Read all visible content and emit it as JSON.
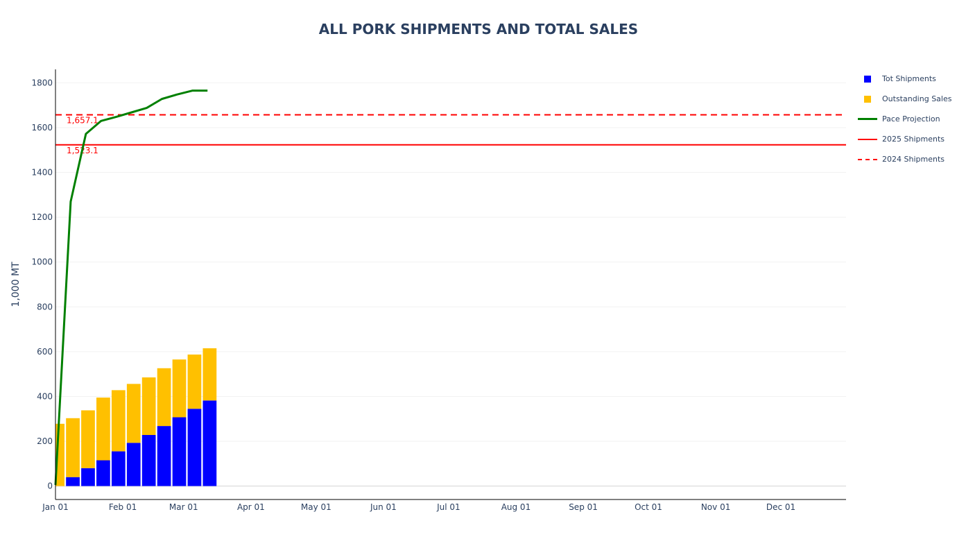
{
  "chart_data": {
    "type": "bar",
    "title": "ALL PORK SHIPMENTS AND TOTAL SALES",
    "ylabel": "1,000 MT",
    "xlabel": "",
    "x_ticks": [
      "Jan 01",
      "Feb 01",
      "Mar 01",
      "Apr 01",
      "May 01",
      "Jun 01",
      "Jul 01",
      "Aug 01",
      "Sep 01",
      "Oct 01",
      "Nov 01",
      "Dec 01"
    ],
    "y_ticks": [
      "0",
      "200",
      "400",
      "600",
      "800",
      "1000",
      "1200",
      "1400",
      "1600",
      "1800"
    ],
    "ylim": [
      -60,
      1860
    ],
    "xlim": [
      "2025-01-01",
      "2025-12-31"
    ],
    "grid": true,
    "barmode": "stack",
    "legend_position": "right",
    "dates": [
      "2025-01-02",
      "2025-01-09",
      "2025-01-16",
      "2025-01-23",
      "2025-01-30",
      "2025-02-06",
      "2025-02-13",
      "2025-02-20",
      "2025-02-27",
      "2025-03-06",
      "2025-03-13"
    ],
    "series": [
      {
        "name": "Tot Shipments",
        "type": "bar",
        "color": "#0000ff",
        "values": [
          0,
          40,
          80,
          115,
          155,
          193,
          228,
          268,
          307,
          345,
          382
        ]
      },
      {
        "name": "Outstanding Sales",
        "type": "bar",
        "color": "#ffc000",
        "values": [
          278,
          263,
          258,
          280,
          273,
          263,
          257,
          258,
          258,
          242,
          233
        ]
      },
      {
        "name": "Pace Projection",
        "type": "line",
        "color": "#008000",
        "dates": [
          "2025-01-01",
          "2025-01-08",
          "2025-01-15",
          "2025-01-22",
          "2025-01-29",
          "2025-02-05",
          "2025-02-12",
          "2025-02-19",
          "2025-02-26",
          "2025-03-05",
          "2025-03-12"
        ],
        "values": [
          5,
          1270,
          1572,
          1630,
          1648,
          1668,
          1688,
          1728,
          1748,
          1765,
          1765
        ]
      },
      {
        "name": "2025 Shipments",
        "type": "hline",
        "color": "#ff0000",
        "dash": "solid",
        "value": 1523.1
      },
      {
        "name": "2024 Shipments",
        "type": "hline",
        "color": "#ff0000",
        "dash": "dash",
        "value": 1657.1
      }
    ],
    "annotations": [
      {
        "text": "1,657.1",
        "value": 1657.1,
        "color": "#ff0000"
      },
      {
        "text": "1,523.1",
        "value": 1523.1,
        "color": "#ff0000"
      }
    ]
  }
}
